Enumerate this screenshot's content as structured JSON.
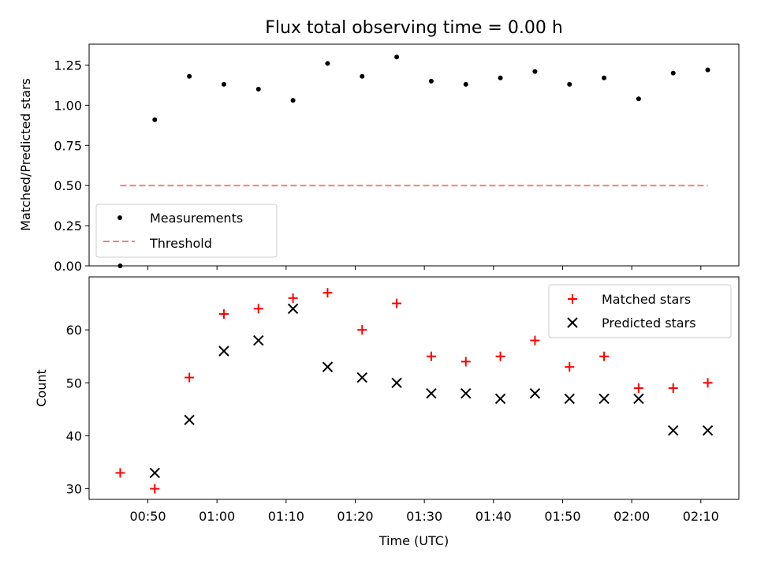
{
  "chart_data": [
    {
      "type": "scatter",
      "title": "Flux total observing time = 0.00 h",
      "xlabel": "",
      "ylabel": "Matched/Predicted stars",
      "ylim": [
        0,
        1.38
      ],
      "yticks": [
        0.0,
        0.25,
        0.5,
        0.75,
        1.0,
        1.25
      ],
      "ytick_labels": [
        "0.00",
        "0.25",
        "0.50",
        "0.75",
        "1.00",
        "1.25"
      ],
      "x_minutes": [
        46,
        51,
        56,
        61,
        66,
        71,
        76,
        81,
        86,
        91,
        96,
        101,
        106,
        111,
        116,
        121,
        126,
        131
      ],
      "series": [
        {
          "name": "Measurements",
          "marker": "dot",
          "color": "#000000",
          "values": [
            0.0,
            0.91,
            1.18,
            1.13,
            1.1,
            1.03,
            1.26,
            1.18,
            1.3,
            1.15,
            1.13,
            1.17,
            1.21,
            1.13,
            1.17,
            1.04,
            1.2,
            1.22
          ]
        },
        {
          "name": "Threshold",
          "marker": "dashed-line",
          "color": "#f08080",
          "values": [
            0.5,
            0.5
          ]
        }
      ],
      "threshold_x_range": [
        46,
        131
      ],
      "legend": "lower-left"
    },
    {
      "type": "scatter",
      "xlabel": "Time (UTC)",
      "ylabel": "Count",
      "ylim": [
        28,
        70
      ],
      "yticks": [
        30,
        40,
        50,
        60
      ],
      "ytick_labels": [
        "30",
        "40",
        "50",
        "60"
      ],
      "xlim_minutes": [
        41.5,
        135.5
      ],
      "xticks_minutes": [
        50,
        60,
        70,
        80,
        90,
        100,
        110,
        120,
        130
      ],
      "xtick_labels": [
        "00:50",
        "01:00",
        "01:10",
        "01:20",
        "01:30",
        "01:40",
        "01:50",
        "02:00",
        "02:10"
      ],
      "series": [
        {
          "name": "Matched stars",
          "marker": "plus",
          "color": "#ff0000",
          "x_minutes": [
            46,
            51,
            56,
            61,
            66,
            71,
            76,
            81,
            86,
            91,
            96,
            101,
            106,
            111,
            116,
            121,
            126,
            131
          ],
          "values": [
            33,
            30,
            51,
            63,
            64,
            66,
            67,
            60,
            65,
            55,
            54,
            55,
            58,
            53,
            55,
            49,
            49,
            50
          ]
        },
        {
          "name": "Predicted stars",
          "marker": "x",
          "color": "#000000",
          "x_minutes": [
            51,
            56,
            61,
            66,
            71,
            76,
            81,
            86,
            91,
            96,
            101,
            106,
            111,
            116,
            121,
            126,
            131
          ],
          "values": [
            33,
            43,
            56,
            58,
            64,
            53,
            51,
            50,
            48,
            48,
            47,
            48,
            47,
            47,
            47,
            41,
            41
          ]
        }
      ],
      "legend": "upper-right"
    }
  ]
}
